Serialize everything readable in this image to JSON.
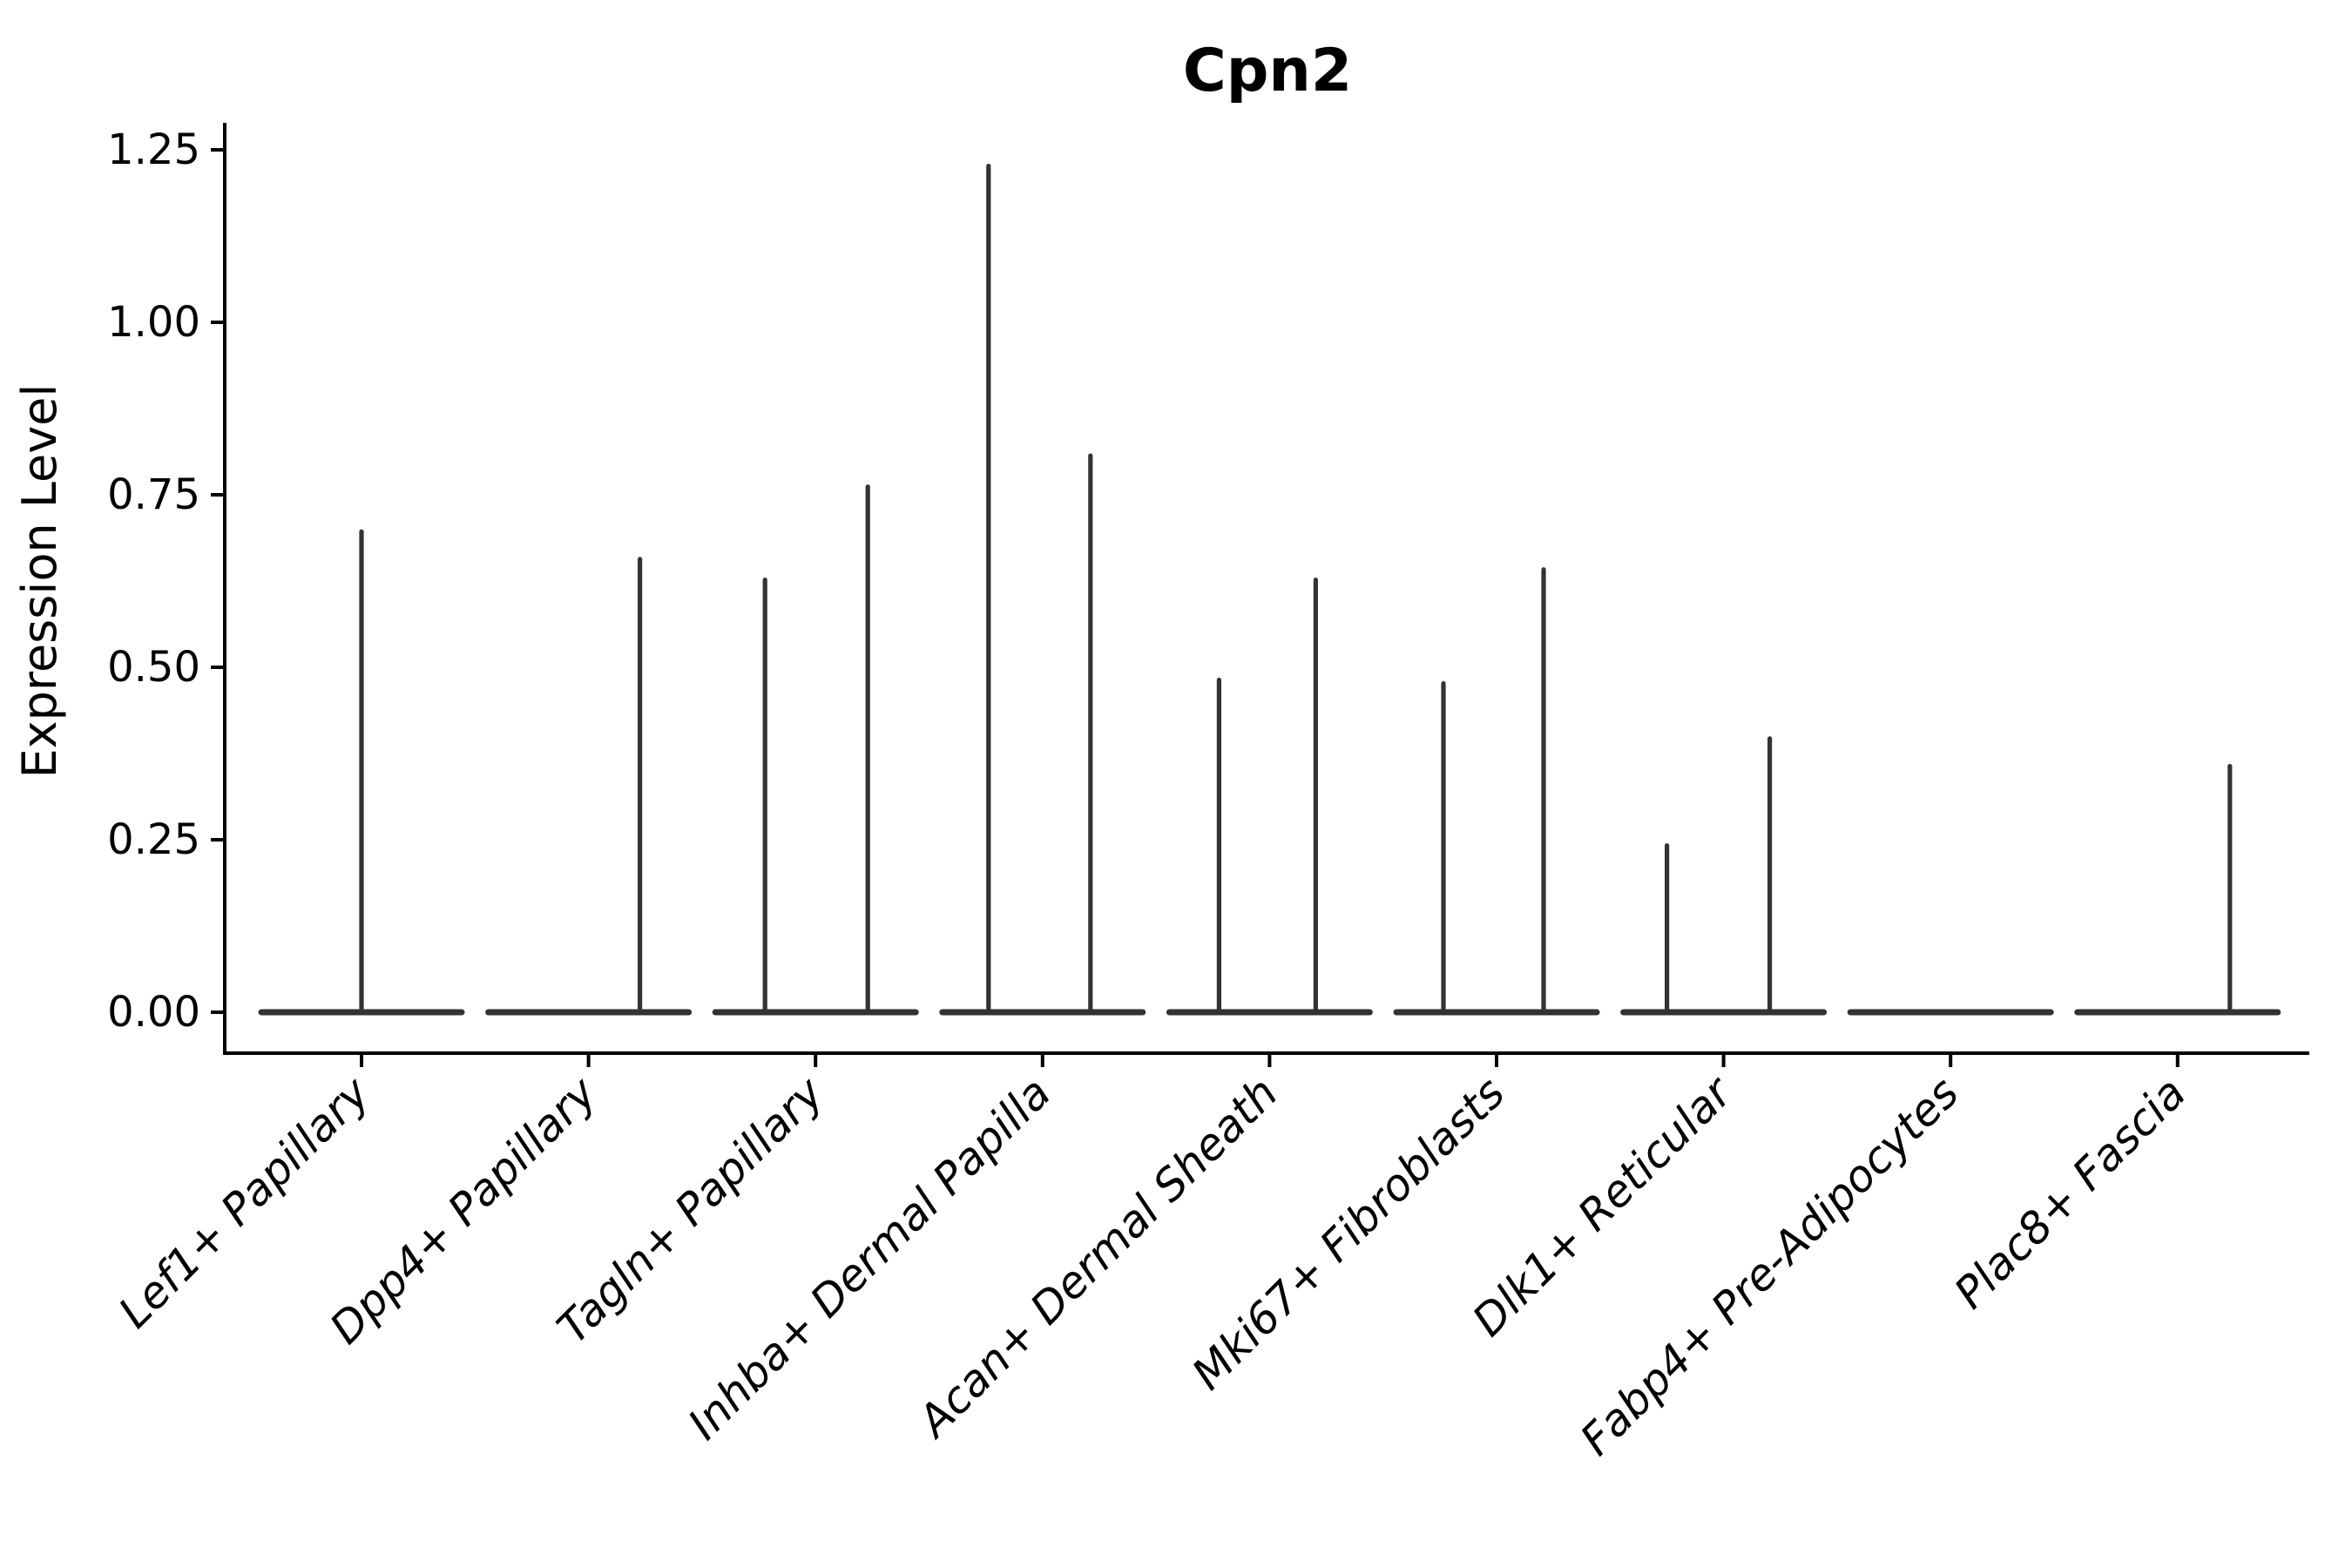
{
  "figure": {
    "title": "Cpn2",
    "ylabel": "Expression Level",
    "xlabel": ""
  },
  "colors": {
    "background": "#ffffff",
    "violin": "#333333",
    "axis": "#000000",
    "text": "#000000"
  },
  "chart_data": {
    "type": "violin",
    "title": "Cpn2",
    "xlabel": "",
    "ylabel": "Expression Level",
    "grid": false,
    "legend": null,
    "ylim": [
      -0.06,
      1.29
    ],
    "yticks": [
      0.0,
      0.25,
      0.5,
      0.75,
      1.0,
      1.25
    ],
    "ytick_labels": [
      "0.00",
      "0.25",
      "0.50",
      "0.75",
      "1.00",
      "1.25"
    ],
    "categories": [
      "Lef1+ Papillary",
      "Dpp4+ Papillary",
      "Tagln+ Papillary",
      "Inhba+ Dermal Papilla",
      "Acan+ Dermal Sheath",
      "Mki67+ Fibroblasts",
      "Dlk1+ Reticular",
      "Fabp4+ Pre-Adipocytes",
      "Plac8+ Fascia"
    ],
    "violins": [
      {
        "category": "Lef1+ Papillary",
        "base_value": 0,
        "spikes": [
          {
            "dx": 0,
            "max": 0.7
          }
        ]
      },
      {
        "category": "Dpp4+ Papillary",
        "base_value": 0,
        "spikes": [
          {
            "dx": 59,
            "max": 0.66
          }
        ]
      },
      {
        "category": "Tagln+ Papillary",
        "base_value": 0,
        "spikes": [
          {
            "dx": -58,
            "max": 0.63
          },
          {
            "dx": 60,
            "max": 0.765
          }
        ]
      },
      {
        "category": "Inhba+ Dermal Papilla",
        "base_value": 0,
        "spikes": [
          {
            "dx": -62,
            "max": 1.23
          },
          {
            "dx": 55,
            "max": 0.81
          }
        ]
      },
      {
        "category": "Acan+ Dermal Sheath",
        "base_value": 0,
        "spikes": [
          {
            "dx": -58,
            "max": 0.485
          },
          {
            "dx": 53,
            "max": 0.63
          }
        ]
      },
      {
        "category": "Mki67+ Fibroblasts",
        "base_value": 0,
        "spikes": [
          {
            "dx": -61,
            "max": 0.48
          },
          {
            "dx": 54,
            "max": 0.645
          }
        ]
      },
      {
        "category": "Dlk1+ Reticular",
        "base_value": 0,
        "spikes": [
          {
            "dx": -65,
            "max": 0.245
          },
          {
            "dx": 53,
            "max": 0.4
          }
        ]
      },
      {
        "category": "Fabp4+ Pre-Adipocytes",
        "base_value": 0,
        "spikes": []
      },
      {
        "category": "Plac8+ Fascia",
        "base_value": 0,
        "spikes": [
          {
            "dx": 60,
            "max": 0.36
          }
        ]
      }
    ]
  }
}
